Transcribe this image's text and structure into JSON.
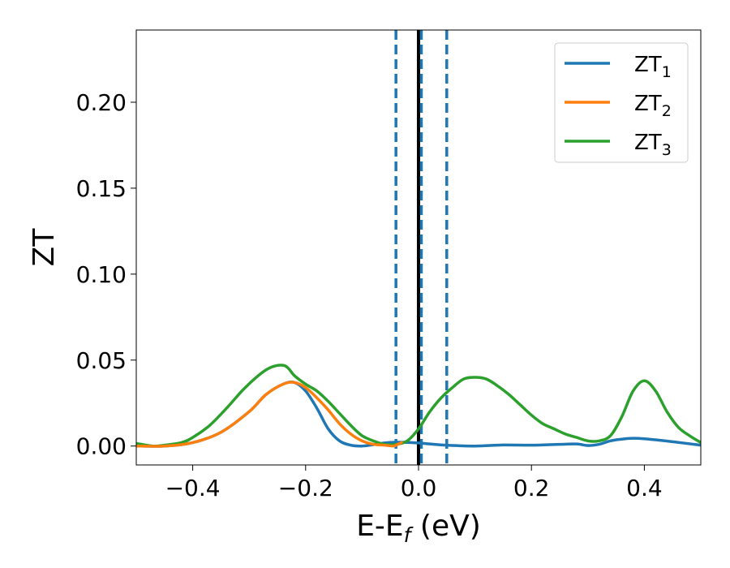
{
  "chart_data": {
    "type": "line",
    "xlabel_main": "E-E",
    "xlabel_sub": "f",
    "xlabel_unit": " (eV)",
    "ylabel": "ZT",
    "xlim": [
      -0.5,
      0.5
    ],
    "ylim": [
      -0.011,
      0.242
    ],
    "x_ticks": [
      -0.4,
      -0.2,
      0.0,
      0.2,
      0.4
    ],
    "x_tick_labels": [
      "−0.4",
      "−0.2",
      "0.0",
      "0.2",
      "0.4"
    ],
    "y_ticks": [
      0.0,
      0.05,
      0.1,
      0.15,
      0.2
    ],
    "y_tick_labels": [
      "0.00",
      "0.05",
      "0.10",
      "0.15",
      "0.20"
    ],
    "legend_position": "top-right",
    "grid": false,
    "vlines": [
      {
        "x": 0.0,
        "style": "solid",
        "color": "#000000"
      },
      {
        "x": -0.04,
        "style": "dashed",
        "color": "#1f77b4"
      },
      {
        "x": 0.005,
        "style": "dashed",
        "color": "#1f77b4"
      },
      {
        "x": 0.05,
        "style": "dashed",
        "color": "#1f77b4"
      }
    ],
    "series": [
      {
        "name": "ZT",
        "name_sub": "1",
        "color": "#1f77b4",
        "x": [
          -0.5,
          -0.45,
          -0.4,
          -0.35,
          -0.3,
          -0.27,
          -0.24,
          -0.22,
          -0.2,
          -0.18,
          -0.16,
          -0.14,
          -0.12,
          -0.1,
          -0.08,
          -0.06,
          -0.04,
          -0.02,
          0.0,
          0.02,
          0.05,
          0.1,
          0.15,
          0.2,
          0.25,
          0.28,
          0.3,
          0.32,
          0.34,
          0.36,
          0.38,
          0.4,
          0.45,
          0.5
        ],
        "y": [
          0.0,
          0.0,
          0.002,
          0.008,
          0.02,
          0.03,
          0.036,
          0.037,
          0.032,
          0.022,
          0.01,
          0.003,
          0.0005,
          0.0,
          0.0008,
          0.0018,
          0.0022,
          0.0021,
          0.0018,
          0.0012,
          0.0005,
          0.0,
          0.0006,
          0.0005,
          0.001,
          0.0012,
          0.0003,
          0.001,
          0.003,
          0.004,
          0.0045,
          0.0042,
          0.0025,
          0.0005
        ]
      },
      {
        "name": "ZT",
        "name_sub": "2",
        "color": "#ff7f0e",
        "x": [
          -0.5,
          -0.45,
          -0.4,
          -0.35,
          -0.3,
          -0.27,
          -0.24,
          -0.22,
          -0.2,
          -0.18,
          -0.16,
          -0.14,
          -0.12,
          -0.1,
          -0.08,
          -0.06,
          -0.045,
          -0.04,
          -0.03
        ],
        "y": [
          0.0,
          0.0,
          0.002,
          0.008,
          0.02,
          0.03,
          0.036,
          0.037,
          0.034,
          0.028,
          0.021,
          0.013,
          0.007,
          0.003,
          0.001,
          0.0005,
          0.0,
          0.0005,
          0.002
        ]
      },
      {
        "name": "ZT",
        "name_sub": "3",
        "color": "#2ca02c",
        "x": [
          -0.5,
          -0.47,
          -0.45,
          -0.42,
          -0.4,
          -0.37,
          -0.34,
          -0.31,
          -0.28,
          -0.26,
          -0.24,
          -0.23,
          -0.22,
          -0.2,
          -0.18,
          -0.16,
          -0.14,
          -0.12,
          -0.1,
          -0.08,
          -0.06,
          -0.04,
          -0.02,
          0.0,
          0.02,
          0.04,
          0.06,
          0.08,
          0.1,
          0.12,
          0.14,
          0.16,
          0.18,
          0.2,
          0.22,
          0.24,
          0.26,
          0.28,
          0.3,
          0.32,
          0.34,
          0.36,
          0.38,
          0.4,
          0.42,
          0.44,
          0.46,
          0.48,
          0.5
        ],
        "y": [
          0.0015,
          0.0,
          0.0005,
          0.002,
          0.005,
          0.012,
          0.022,
          0.033,
          0.042,
          0.046,
          0.047,
          0.045,
          0.041,
          0.036,
          0.032,
          0.026,
          0.019,
          0.012,
          0.006,
          0.003,
          0.001,
          0.001,
          0.003,
          0.01,
          0.02,
          0.028,
          0.034,
          0.039,
          0.04,
          0.039,
          0.035,
          0.03,
          0.024,
          0.018,
          0.013,
          0.01,
          0.007,
          0.005,
          0.003,
          0.003,
          0.006,
          0.017,
          0.032,
          0.038,
          0.032,
          0.02,
          0.011,
          0.006,
          0.002
        ]
      }
    ]
  }
}
